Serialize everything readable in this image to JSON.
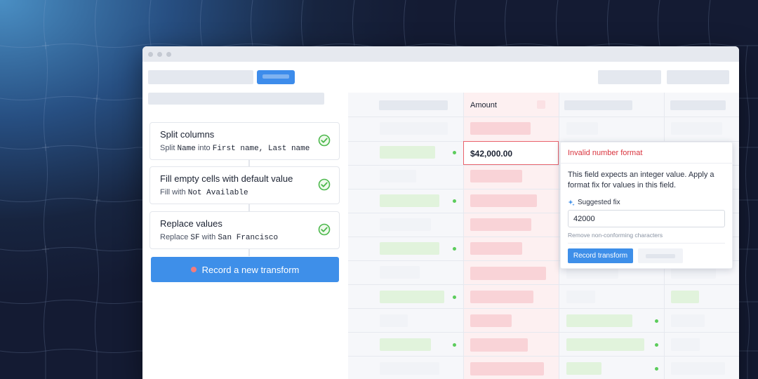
{
  "transforms": {
    "steps": [
      {
        "title": "Split columns",
        "sub": {
          "prefix": "Split ",
          "code1": "Name",
          "mid": " into ",
          "code2": "First name, Last name"
        }
      },
      {
        "title": "Fill empty cells with default value",
        "sub": {
          "prefix": "Fill with ",
          "code1": "Not Available"
        }
      },
      {
        "title": "Replace values",
        "sub": {
          "prefix": "Replace ",
          "code1": "SF",
          "mid": " with ",
          "code2": "San Francisco"
        }
      }
    ],
    "record_button_label": "Record a new transform"
  },
  "table": {
    "amount_header": "Amount",
    "selected_cell_value": "$42,000.00"
  },
  "popover": {
    "error_title": "Invalid number format",
    "description": "This field expects an integer value. Apply a format fix for values in this field.",
    "suggested_fix_label": "Suggested fix",
    "suggested_fix_value": "42000",
    "hint": "Remove non-conforming characters",
    "record_button_label": "Record transform"
  },
  "colors": {
    "accent": "#3e8fe9",
    "error": "#d9343e",
    "success": "#4cb84c",
    "record_dot": "#f37c7c"
  },
  "icons": [
    "check-circle-icon",
    "sparkle-icon",
    "record-dot-icon"
  ]
}
